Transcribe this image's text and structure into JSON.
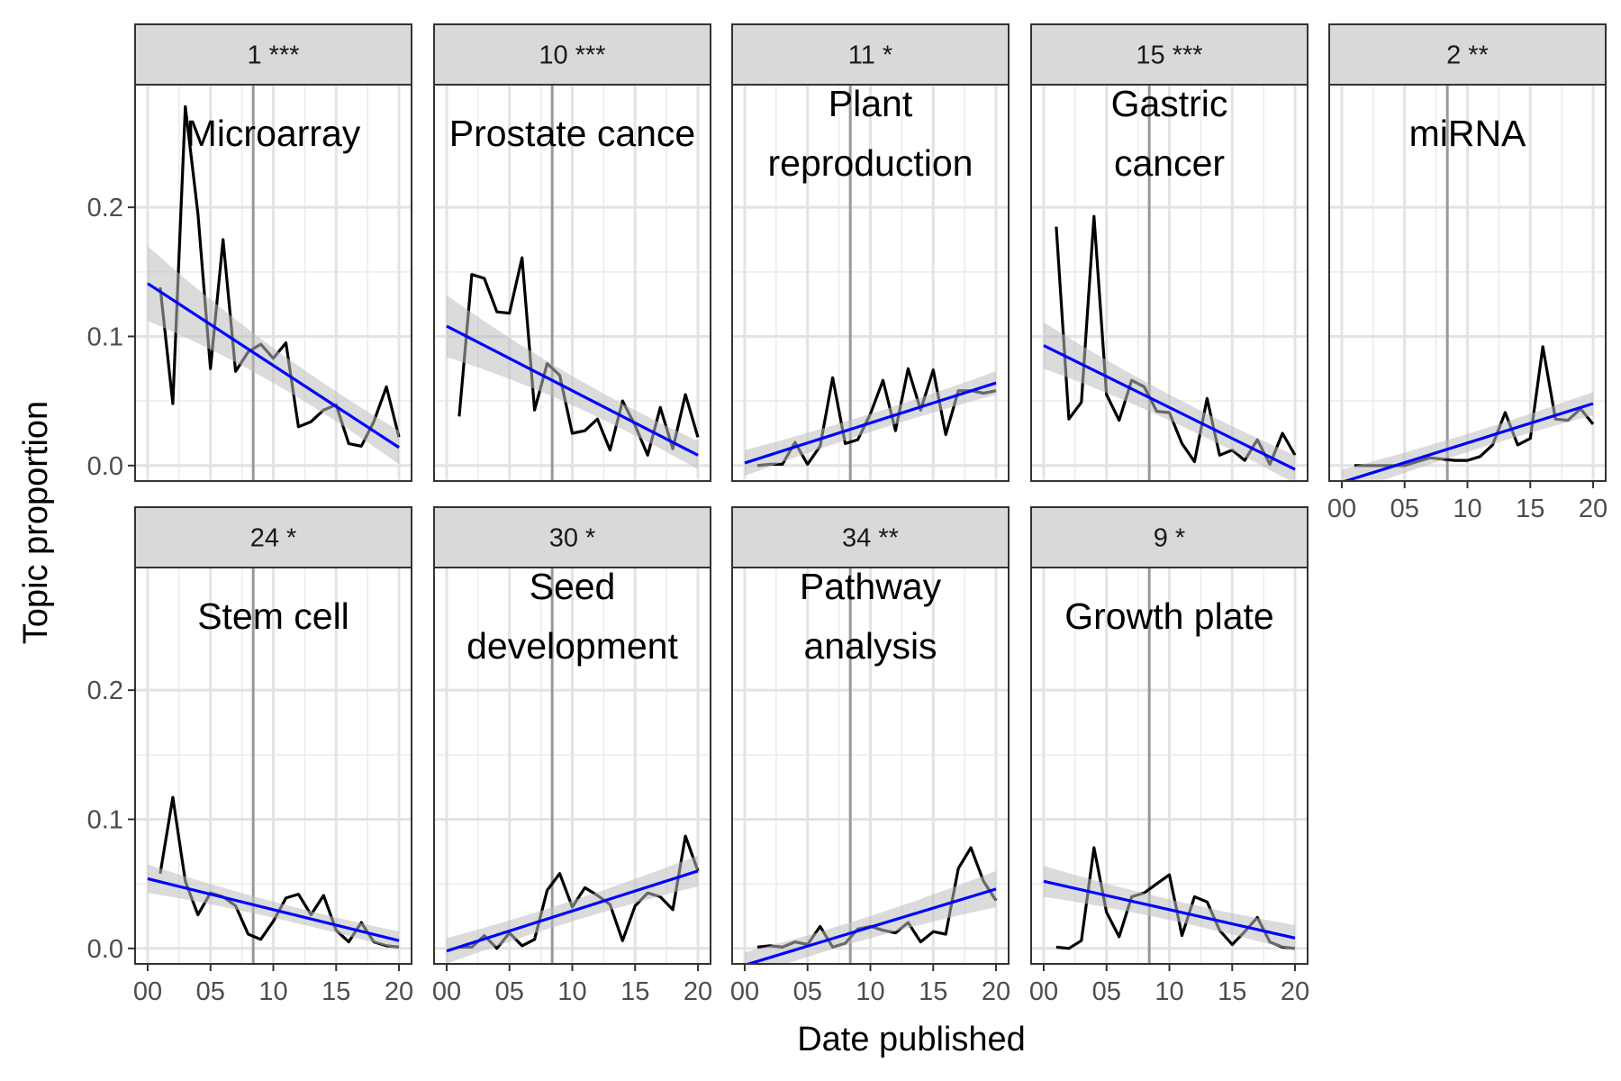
{
  "chart_data": {
    "type": "line",
    "xlabel": "Date published",
    "ylabel": "Topic proportion",
    "xlim": [
      -1,
      21
    ],
    "ylim": [
      -0.012,
      0.295
    ],
    "x_ticks": [
      0,
      5,
      10,
      15,
      20
    ],
    "x_tick_labels": [
      "00",
      "05",
      "10",
      "15",
      "20"
    ],
    "y_ticks": [
      0.0,
      0.1,
      0.2
    ],
    "y_tick_labels": [
      "0.0",
      "0.1",
      "0.2"
    ],
    "reference_line_x": 8.4,
    "grid": true,
    "colors": {
      "series": "#000000",
      "trend": "#0000ff",
      "band": "#bebebe",
      "reference": "#999999",
      "strip": "#d9d9d9"
    },
    "panels": [
      {
        "strip": "1 ***",
        "topic": [
          "Microarray"
        ],
        "x": [
          1,
          2,
          3,
          4,
          5,
          6,
          7,
          8,
          9,
          10,
          11,
          12,
          13,
          14,
          15,
          16,
          17,
          18,
          19,
          20
        ],
        "values": [
          0.138,
          0.048,
          0.278,
          0.195,
          0.075,
          0.175,
          0.073,
          0.088,
          0.094,
          0.083,
          0.095,
          0.03,
          0.034,
          0.043,
          0.047,
          0.017,
          0.015,
          0.034,
          0.061,
          0.022
        ],
        "trend": [
          0.141,
          0.014
        ],
        "band": [
          0.029,
          0.013
        ]
      },
      {
        "strip": "10 ***",
        "topic": [
          "Prostate cance"
        ],
        "x": [
          1,
          2,
          3,
          4,
          5,
          6,
          7,
          8,
          9,
          10,
          11,
          12,
          13,
          14,
          15,
          16,
          17,
          18,
          19,
          20
        ],
        "values": [
          0.038,
          0.148,
          0.145,
          0.119,
          0.118,
          0.161,
          0.043,
          0.079,
          0.07,
          0.025,
          0.027,
          0.036,
          0.012,
          0.05,
          0.031,
          0.008,
          0.045,
          0.013,
          0.055,
          0.022
        ],
        "trend": [
          0.108,
          0.008
        ],
        "band": [
          0.024,
          0.011
        ]
      },
      {
        "strip": "11 *",
        "topic": [
          "Plant",
          "reproduction"
        ],
        "x": [
          1,
          2,
          3,
          4,
          5,
          6,
          7,
          8,
          9,
          10,
          11,
          12,
          13,
          14,
          15,
          16,
          17,
          18,
          19,
          20
        ],
        "values": [
          0.0,
          0.001,
          0.001,
          0.018,
          0.001,
          0.015,
          0.068,
          0.017,
          0.02,
          0.04,
          0.066,
          0.027,
          0.075,
          0.043,
          0.074,
          0.024,
          0.058,
          0.058,
          0.056,
          0.058
        ],
        "trend": [
          0.002,
          0.064
        ],
        "band": [
          0.01,
          0.009
        ]
      },
      {
        "strip": "15 ***",
        "topic": [
          "Gastric",
          "cancer"
        ],
        "x": [
          1,
          2,
          3,
          4,
          5,
          6,
          7,
          8,
          9,
          10,
          11,
          12,
          13,
          14,
          15,
          16,
          17,
          18,
          19,
          20
        ],
        "values": [
          0.185,
          0.036,
          0.049,
          0.193,
          0.055,
          0.035,
          0.066,
          0.061,
          0.042,
          0.041,
          0.017,
          0.003,
          0.052,
          0.008,
          0.012,
          0.004,
          0.02,
          0.001,
          0.025,
          0.008
        ],
        "trend": [
          0.093,
          -0.003
        ],
        "band": [
          0.018,
          0.011
        ]
      },
      {
        "strip": "2 **",
        "topic": [
          "miRNA"
        ],
        "x": [
          1,
          2,
          3,
          4,
          5,
          6,
          7,
          8,
          9,
          10,
          11,
          12,
          13,
          14,
          15,
          16,
          17,
          18,
          19,
          20
        ],
        "values": [
          0.0,
          0.0,
          0.0,
          0.0,
          0.0,
          0.003,
          0.006,
          0.005,
          0.004,
          0.004,
          0.007,
          0.016,
          0.041,
          0.016,
          0.021,
          0.092,
          0.036,
          0.035,
          0.044,
          0.032
        ],
        "trend": [
          -0.013,
          0.048
        ],
        "band": [
          0.01,
          0.009
        ]
      },
      {
        "strip": "24 *",
        "topic": [
          "Stem cell"
        ],
        "x": [
          1,
          2,
          3,
          4,
          5,
          6,
          7,
          8,
          9,
          10,
          11,
          12,
          13,
          14,
          15,
          16,
          17,
          18,
          19,
          20
        ],
        "values": [
          0.058,
          0.117,
          0.052,
          0.026,
          0.043,
          0.04,
          0.033,
          0.011,
          0.007,
          0.021,
          0.039,
          0.042,
          0.026,
          0.041,
          0.014,
          0.005,
          0.02,
          0.005,
          0.002,
          0.001
        ],
        "trend": [
          0.054,
          0.006
        ],
        "band": [
          0.011,
          0.007
        ]
      },
      {
        "strip": "30 *",
        "topic": [
          "Seed",
          "development"
        ],
        "x": [
          1,
          2,
          3,
          4,
          5,
          6,
          7,
          8,
          9,
          10,
          11,
          12,
          13,
          14,
          15,
          16,
          17,
          18,
          19,
          20
        ],
        "values": [
          0.001,
          0.001,
          0.01,
          0.0,
          0.012,
          0.002,
          0.007,
          0.045,
          0.058,
          0.032,
          0.047,
          0.041,
          0.034,
          0.006,
          0.033,
          0.043,
          0.04,
          0.03,
          0.087,
          0.06
        ],
        "trend": [
          -0.002,
          0.06
        ],
        "band": [
          0.01,
          0.012
        ]
      },
      {
        "strip": "34 **",
        "topic": [
          "Pathway",
          "analysis"
        ],
        "x": [
          1,
          2,
          3,
          4,
          5,
          6,
          7,
          8,
          9,
          10,
          11,
          12,
          13,
          14,
          15,
          16,
          17,
          18,
          19,
          20
        ],
        "values": [
          0.001,
          0.002,
          0.001,
          0.005,
          0.003,
          0.017,
          0.001,
          0.004,
          0.015,
          0.017,
          0.014,
          0.012,
          0.02,
          0.005,
          0.013,
          0.011,
          0.062,
          0.078,
          0.052,
          0.037
        ],
        "trend": [
          -0.013,
          0.046
        ],
        "band": [
          0.01,
          0.014
        ]
      },
      {
        "strip": "9 *",
        "topic": [
          "Growth plate"
        ],
        "x": [
          1,
          2,
          3,
          4,
          5,
          6,
          7,
          8,
          9,
          10,
          11,
          12,
          13,
          14,
          15,
          16,
          17,
          18,
          19,
          20
        ],
        "values": [
          0.001,
          0.0,
          0.006,
          0.078,
          0.028,
          0.009,
          0.04,
          0.043,
          0.05,
          0.057,
          0.01,
          0.04,
          0.036,
          0.014,
          0.003,
          0.013,
          0.024,
          0.005,
          0.001,
          0.0
        ],
        "trend": [
          0.052,
          0.008
        ],
        "band": [
          0.012,
          0.01
        ]
      }
    ]
  }
}
